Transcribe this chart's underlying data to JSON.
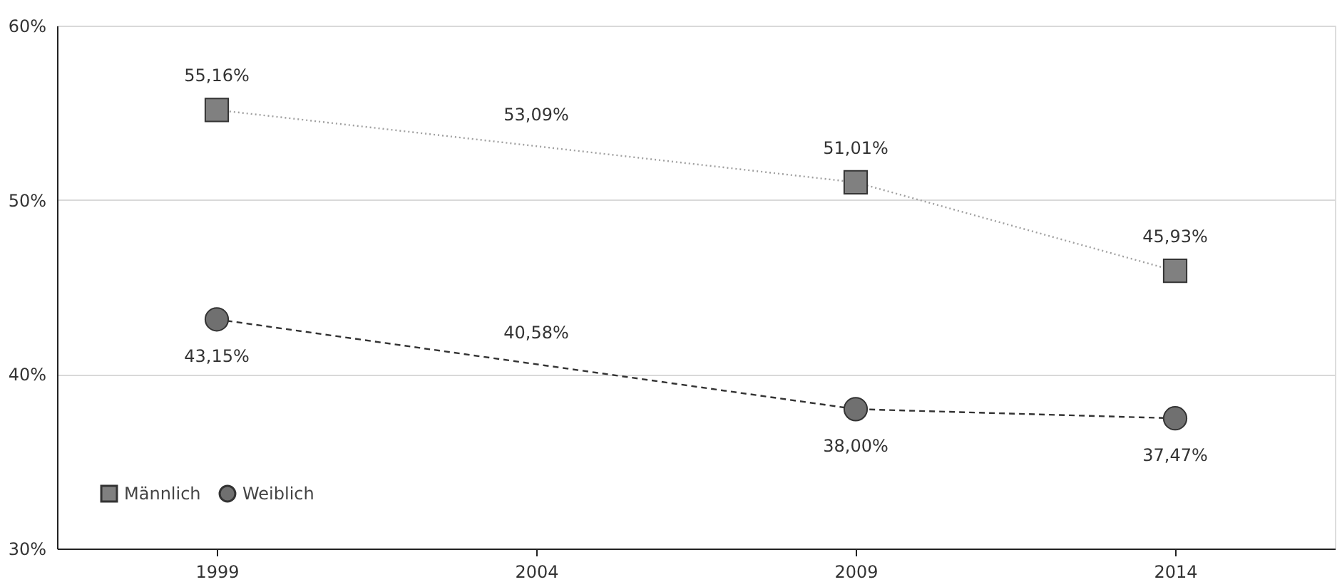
{
  "chart_data": {
    "type": "line",
    "series": [
      {
        "name": "Männlich",
        "color": "#808080",
        "x": [
          1999,
          2009,
          2014
        ],
        "values": [
          55.16,
          51.01,
          45.93
        ],
        "value_labels": [
          "55,16%",
          "51,01%",
          "45,93%"
        ],
        "marker": "square",
        "line_style": "dotted"
      },
      {
        "name": "Weiblich",
        "color": "#707070",
        "x": [
          1999,
          2009,
          2014
        ],
        "values": [
          43.15,
          38.0,
          37.47
        ],
        "value_labels": [
          "43,15%",
          "38,00%",
          "37,47%"
        ],
        "marker": "circle",
        "line_style": "dashed"
      }
    ],
    "annotations": [
      {
        "text": "53,09%",
        "x": 2004,
        "y": 53.09
      },
      {
        "text": "40,58%",
        "x": 2004,
        "y": 40.58
      }
    ],
    "xlim": [
      1996.5,
      2016.5
    ],
    "xticks": [
      1999,
      2004,
      2009,
      2014
    ],
    "ylim": [
      30,
      60
    ],
    "yticks": [
      {
        "value": 30,
        "label": "30%"
      },
      {
        "value": 40,
        "label": "40%"
      },
      {
        "value": 50,
        "label": "50%"
      },
      {
        "value": 60,
        "label": "60%"
      }
    ],
    "grid": "y",
    "legend": "bottom left"
  }
}
